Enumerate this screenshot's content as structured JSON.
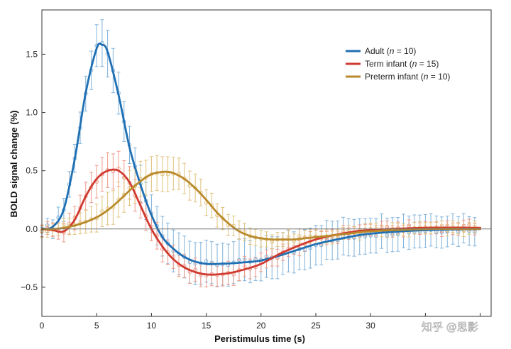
{
  "chart_data": {
    "type": "line",
    "title": "",
    "xlabel": "Peristimulus time (s)",
    "ylabel": "BOLD signal change (%)",
    "xlim": [
      0,
      41
    ],
    "ylim": [
      -0.75,
      1.88
    ],
    "x_ticks": [
      0,
      5,
      10,
      15,
      20,
      25,
      30,
      35,
      40
    ],
    "x_tick_labels": [
      "0",
      "5",
      "10",
      "15",
      "20",
      "25",
      "30",
      "",
      ""
    ],
    "y_ticks": [
      -0.5,
      0.0,
      0.5,
      1.0,
      1.5
    ],
    "y_tick_labels": [
      "−0.5",
      "0.0",
      "0.5",
      "1.0",
      "1.5"
    ],
    "zero_line": true,
    "grid": false,
    "legend_position": "top-right",
    "series": [
      {
        "name": "Adult",
        "legend_prefix": "Adult (",
        "legend_n": "n",
        "legend_suffix": " = 10)",
        "color": "#1f6fb3",
        "point_color": "#7fb2da",
        "x": [
          0,
          1,
          2,
          3,
          4,
          5,
          5.5,
          6,
          7,
          8,
          9,
          10,
          11,
          12,
          13,
          14,
          15,
          16,
          18,
          20,
          22,
          25,
          28,
          30,
          35,
          40
        ],
        "values": [
          0.0,
          0.02,
          0.17,
          0.6,
          1.17,
          1.55,
          1.58,
          1.52,
          1.15,
          0.7,
          0.38,
          0.12,
          -0.07,
          -0.17,
          -0.24,
          -0.28,
          -0.3,
          -0.3,
          -0.29,
          -0.27,
          -0.22,
          -0.13,
          -0.07,
          -0.04,
          -0.01,
          0.0
        ],
        "error": [
          0.04,
          0.08,
          0.1,
          0.12,
          0.15,
          0.18,
          0.2,
          0.2,
          0.18,
          0.16,
          0.16,
          0.16,
          0.17,
          0.18,
          0.18,
          0.18,
          0.18,
          0.18,
          0.18,
          0.18,
          0.18,
          0.17,
          0.16,
          0.15,
          0.14,
          0.12
        ]
      },
      {
        "name": "Term infant",
        "legend_prefix": "Term infant (",
        "legend_n": "n",
        "legend_suffix": " = 15)",
        "color": "#d03a30",
        "point_color": "#ee9a8a",
        "x": [
          0,
          1,
          2,
          3,
          4,
          5,
          6,
          7,
          8,
          9,
          10,
          11,
          12,
          13,
          14,
          15,
          16,
          17,
          18,
          20,
          22,
          25,
          28,
          30,
          35,
          40
        ],
        "values": [
          0.0,
          -0.01,
          -0.02,
          0.08,
          0.28,
          0.43,
          0.5,
          0.5,
          0.4,
          0.2,
          0.0,
          -0.15,
          -0.26,
          -0.33,
          -0.37,
          -0.39,
          -0.39,
          -0.38,
          -0.36,
          -0.3,
          -0.2,
          -0.09,
          -0.03,
          -0.01,
          0.01,
          0.01
        ],
        "error": [
          0.05,
          0.06,
          0.08,
          0.1,
          0.12,
          0.14,
          0.15,
          0.15,
          0.14,
          0.13,
          0.12,
          0.11,
          0.1,
          0.1,
          0.1,
          0.1,
          0.1,
          0.1,
          0.09,
          0.08,
          0.07,
          0.06,
          0.05,
          0.05,
          0.05,
          0.05
        ]
      },
      {
        "name": "Preterm infant",
        "legend_prefix": "Preterm infant (",
        "legend_n": "n",
        "legend_suffix": " = 10)",
        "color": "#b98a2b",
        "point_color": "#e0c27e",
        "x": [
          0,
          1,
          2,
          3,
          4,
          5,
          6,
          7,
          8,
          9,
          10,
          11,
          11.5,
          12,
          13,
          14,
          15,
          16,
          17,
          18,
          19,
          20,
          21,
          22,
          23,
          24,
          25,
          28,
          30,
          35,
          40
        ],
        "values": [
          0.0,
          0.0,
          0.01,
          0.03,
          0.06,
          0.1,
          0.16,
          0.24,
          0.33,
          0.41,
          0.47,
          0.49,
          0.49,
          0.48,
          0.43,
          0.35,
          0.25,
          0.14,
          0.05,
          -0.02,
          -0.06,
          -0.08,
          -0.09,
          -0.09,
          -0.09,
          -0.08,
          -0.07,
          -0.04,
          -0.02,
          0.0,
          0.0
        ],
        "error": [
          0.05,
          0.05,
          0.06,
          0.08,
          0.1,
          0.12,
          0.14,
          0.15,
          0.15,
          0.15,
          0.15,
          0.15,
          0.15,
          0.14,
          0.13,
          0.12,
          0.11,
          0.1,
          0.09,
          0.08,
          0.07,
          0.07,
          0.06,
          0.06,
          0.06,
          0.06,
          0.06,
          0.05,
          0.05,
          0.05,
          0.05
        ]
      }
    ]
  },
  "watermark": "知乎 @思影"
}
